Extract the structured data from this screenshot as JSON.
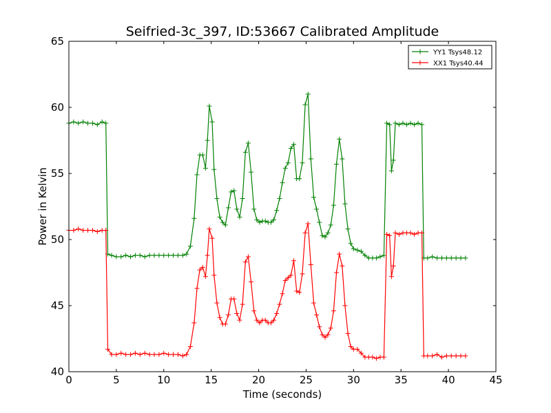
{
  "chart_data": {
    "type": "line",
    "title": "Seifried-3c_397, ID:53667 Calibrated Amplitude",
    "xlabel": "Time (seconds)",
    "ylabel": "Power in Kelvin",
    "xlim": [
      0,
      45
    ],
    "ylim": [
      40,
      65
    ],
    "xticks": [
      0,
      5,
      10,
      15,
      20,
      25,
      30,
      35,
      40,
      45
    ],
    "yticks": [
      40,
      45,
      50,
      55,
      60,
      65
    ],
    "grid": false,
    "legend_position": "top-right",
    "series": [
      {
        "name": "YY1 Tsys48.12",
        "color": "#008000",
        "points": [
          [
            0.0,
            58.8
          ],
          [
            0.5,
            58.9
          ],
          [
            1.0,
            58.8
          ],
          [
            1.5,
            58.9
          ],
          [
            2.0,
            58.8
          ],
          [
            2.5,
            58.8
          ],
          [
            3.0,
            58.7
          ],
          [
            3.5,
            58.9
          ],
          [
            3.9,
            58.8
          ],
          [
            4.1,
            48.9
          ],
          [
            4.5,
            48.8
          ],
          [
            5.0,
            48.7
          ],
          [
            5.5,
            48.7
          ],
          [
            6.0,
            48.8
          ],
          [
            6.5,
            48.7
          ],
          [
            7.0,
            48.8
          ],
          [
            7.5,
            48.8
          ],
          [
            8.0,
            48.7
          ],
          [
            8.5,
            48.8
          ],
          [
            9.0,
            48.8
          ],
          [
            9.5,
            48.8
          ],
          [
            10.0,
            48.8
          ],
          [
            10.5,
            48.8
          ],
          [
            11.0,
            48.8
          ],
          [
            11.5,
            48.8
          ],
          [
            12.0,
            48.8
          ],
          [
            12.4,
            48.9
          ],
          [
            12.8,
            49.5
          ],
          [
            13.2,
            51.6
          ],
          [
            13.5,
            54.9
          ],
          [
            13.8,
            56.4
          ],
          [
            14.1,
            56.4
          ],
          [
            14.4,
            55.4
          ],
          [
            14.6,
            57.5
          ],
          [
            14.8,
            60.1
          ],
          [
            15.1,
            58.9
          ],
          [
            15.3,
            55.3
          ],
          [
            15.6,
            53.1
          ],
          [
            15.9,
            51.7
          ],
          [
            16.2,
            51.3
          ],
          [
            16.5,
            51.1
          ],
          [
            16.8,
            52.4
          ],
          [
            17.1,
            53.6
          ],
          [
            17.4,
            53.7
          ],
          [
            17.7,
            52.3
          ],
          [
            18.0,
            51.7
          ],
          [
            18.3,
            53.1
          ],
          [
            18.6,
            56.6
          ],
          [
            18.9,
            57.3
          ],
          [
            19.2,
            55.1
          ],
          [
            19.5,
            52.3
          ],
          [
            19.8,
            51.5
          ],
          [
            20.1,
            51.3
          ],
          [
            20.4,
            51.4
          ],
          [
            20.7,
            51.4
          ],
          [
            21.0,
            51.3
          ],
          [
            21.3,
            51.3
          ],
          [
            21.6,
            51.5
          ],
          [
            21.9,
            52.2
          ],
          [
            22.2,
            53.1
          ],
          [
            22.5,
            54.3
          ],
          [
            22.8,
            55.4
          ],
          [
            23.1,
            55.8
          ],
          [
            23.4,
            56.9
          ],
          [
            23.7,
            57.2
          ],
          [
            24.0,
            54.6
          ],
          [
            24.3,
            54.6
          ],
          [
            24.6,
            55.8
          ],
          [
            24.9,
            60.2
          ],
          [
            25.2,
            61.0
          ],
          [
            25.5,
            56.1
          ],
          [
            25.8,
            53.2
          ],
          [
            26.1,
            52.3
          ],
          [
            26.4,
            51.3
          ],
          [
            26.7,
            50.3
          ],
          [
            27.0,
            50.2
          ],
          [
            27.3,
            50.5
          ],
          [
            27.6,
            51.1
          ],
          [
            27.9,
            52.6
          ],
          [
            28.2,
            55.7
          ],
          [
            28.5,
            57.6
          ],
          [
            28.8,
            56.1
          ],
          [
            29.1,
            52.7
          ],
          [
            29.4,
            50.8
          ],
          [
            29.7,
            49.7
          ],
          [
            30.0,
            49.3
          ],
          [
            30.4,
            49.2
          ],
          [
            30.8,
            49.1
          ],
          [
            31.2,
            48.8
          ],
          [
            31.6,
            48.6
          ],
          [
            32.0,
            48.6
          ],
          [
            32.4,
            48.6
          ],
          [
            32.8,
            48.7
          ],
          [
            33.2,
            48.8
          ],
          [
            33.5,
            58.8
          ],
          [
            33.8,
            58.7
          ],
          [
            34.0,
            55.2
          ],
          [
            34.2,
            56.0
          ],
          [
            34.4,
            58.8
          ],
          [
            34.8,
            58.7
          ],
          [
            35.2,
            58.8
          ],
          [
            35.6,
            58.7
          ],
          [
            36.0,
            58.8
          ],
          [
            36.4,
            58.7
          ],
          [
            36.8,
            58.8
          ],
          [
            37.2,
            58.7
          ],
          [
            37.4,
            48.6
          ],
          [
            37.8,
            48.6
          ],
          [
            38.3,
            48.7
          ],
          [
            38.8,
            48.6
          ],
          [
            39.3,
            48.6
          ],
          [
            39.8,
            48.6
          ],
          [
            40.3,
            48.6
          ],
          [
            40.8,
            48.6
          ],
          [
            41.3,
            48.6
          ],
          [
            41.8,
            48.6
          ]
        ]
      },
      {
        "name": "XX1 Tsys40.44",
        "color": "#ff0000",
        "points": [
          [
            0.0,
            50.7
          ],
          [
            0.5,
            50.7
          ],
          [
            1.0,
            50.8
          ],
          [
            1.5,
            50.7
          ],
          [
            2.0,
            50.7
          ],
          [
            2.5,
            50.7
          ],
          [
            3.0,
            50.6
          ],
          [
            3.5,
            50.7
          ],
          [
            3.9,
            50.7
          ],
          [
            4.1,
            41.7
          ],
          [
            4.5,
            41.3
          ],
          [
            5.0,
            41.3
          ],
          [
            5.5,
            41.4
          ],
          [
            6.0,
            41.3
          ],
          [
            6.5,
            41.3
          ],
          [
            7.0,
            41.4
          ],
          [
            7.5,
            41.3
          ],
          [
            8.0,
            41.4
          ],
          [
            8.5,
            41.3
          ],
          [
            9.0,
            41.3
          ],
          [
            9.5,
            41.3
          ],
          [
            10.0,
            41.4
          ],
          [
            10.5,
            41.3
          ],
          [
            11.0,
            41.3
          ],
          [
            11.5,
            41.3
          ],
          [
            12.0,
            41.2
          ],
          [
            12.4,
            41.3
          ],
          [
            12.8,
            41.9
          ],
          [
            13.2,
            43.7
          ],
          [
            13.5,
            46.3
          ],
          [
            13.8,
            47.7
          ],
          [
            14.1,
            47.9
          ],
          [
            14.4,
            47.2
          ],
          [
            14.6,
            48.8
          ],
          [
            14.8,
            50.8
          ],
          [
            15.1,
            50.1
          ],
          [
            15.3,
            47.3
          ],
          [
            15.6,
            45.2
          ],
          [
            15.9,
            44.1
          ],
          [
            16.2,
            43.6
          ],
          [
            16.5,
            43.6
          ],
          [
            16.8,
            44.3
          ],
          [
            17.1,
            45.5
          ],
          [
            17.4,
            45.5
          ],
          [
            17.7,
            44.4
          ],
          [
            18.0,
            43.9
          ],
          [
            18.3,
            45.1
          ],
          [
            18.6,
            48.3
          ],
          [
            18.9,
            48.7
          ],
          [
            19.2,
            46.8
          ],
          [
            19.5,
            44.6
          ],
          [
            19.8,
            43.9
          ],
          [
            20.1,
            43.7
          ],
          [
            20.4,
            43.9
          ],
          [
            20.7,
            43.9
          ],
          [
            21.0,
            43.7
          ],
          [
            21.3,
            43.7
          ],
          [
            21.6,
            43.9
          ],
          [
            21.9,
            44.4
          ],
          [
            22.2,
            45.1
          ],
          [
            22.5,
            45.9
          ],
          [
            22.8,
            46.9
          ],
          [
            23.1,
            47.1
          ],
          [
            23.4,
            47.3
          ],
          [
            23.7,
            48.4
          ],
          [
            24.0,
            46.1
          ],
          [
            24.3,
            46.0
          ],
          [
            24.6,
            47.4
          ],
          [
            24.9,
            50.5
          ],
          [
            25.2,
            51.2
          ],
          [
            25.5,
            48.1
          ],
          [
            25.8,
            45.2
          ],
          [
            26.1,
            44.3
          ],
          [
            26.4,
            43.4
          ],
          [
            26.7,
            42.8
          ],
          [
            27.0,
            42.6
          ],
          [
            27.3,
            42.8
          ],
          [
            27.6,
            43.3
          ],
          [
            27.9,
            44.6
          ],
          [
            28.2,
            47.5
          ],
          [
            28.5,
            48.9
          ],
          [
            28.8,
            48.0
          ],
          [
            29.1,
            45.0
          ],
          [
            29.4,
            42.9
          ],
          [
            29.7,
            41.9
          ],
          [
            30.0,
            41.7
          ],
          [
            30.4,
            41.7
          ],
          [
            30.8,
            41.4
          ],
          [
            31.2,
            41.1
          ],
          [
            31.6,
            41.1
          ],
          [
            32.0,
            41.1
          ],
          [
            32.4,
            41.0
          ],
          [
            32.8,
            41.1
          ],
          [
            33.2,
            41.1
          ],
          [
            33.5,
            50.4
          ],
          [
            33.8,
            50.3
          ],
          [
            34.0,
            47.2
          ],
          [
            34.2,
            48.0
          ],
          [
            34.4,
            50.5
          ],
          [
            34.8,
            50.4
          ],
          [
            35.2,
            50.5
          ],
          [
            35.6,
            50.5
          ],
          [
            36.0,
            50.5
          ],
          [
            36.4,
            50.4
          ],
          [
            36.8,
            50.5
          ],
          [
            37.2,
            50.5
          ],
          [
            37.4,
            41.2
          ],
          [
            37.8,
            41.2
          ],
          [
            38.3,
            41.2
          ],
          [
            38.8,
            41.3
          ],
          [
            39.3,
            41.1
          ],
          [
            39.8,
            41.2
          ],
          [
            40.3,
            41.2
          ],
          [
            40.8,
            41.2
          ],
          [
            41.3,
            41.2
          ],
          [
            41.8,
            41.2
          ]
        ]
      }
    ]
  }
}
